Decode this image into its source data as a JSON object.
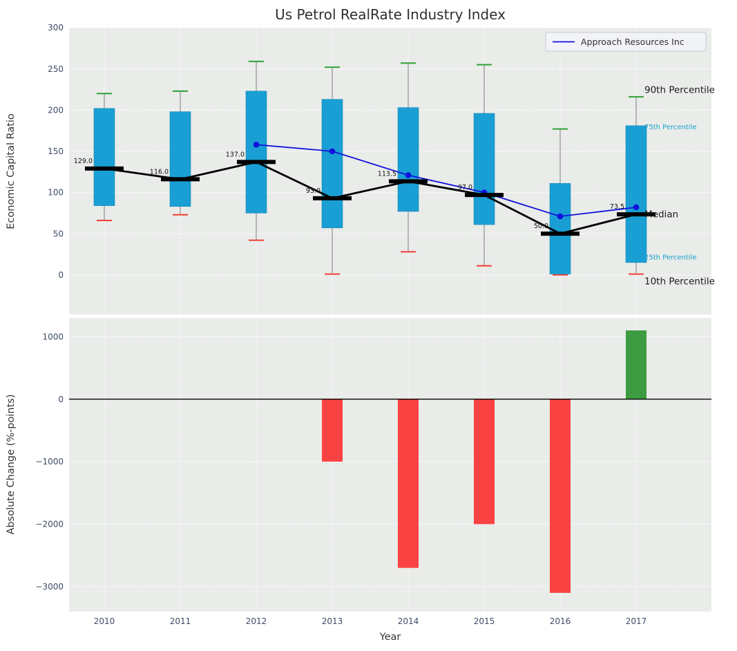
{
  "figure": {
    "title": "Us Petrol RealRate Industry Index",
    "xlabel": "Year",
    "legend_label": "Approach Resources Inc"
  },
  "colors": {
    "panel_bg": "#e9ece9",
    "grid": "#ffffff",
    "box_fill": "#1a9fd4",
    "box_edge": "#1587b5",
    "whisker": "#8f8f8f",
    "cap_high": "#2fa033",
    "cap_low": "#f03d33",
    "median": "#000000",
    "company_line": "#1212dd",
    "bar_negative": "#fb4243",
    "bar_positive": "#3d9c41",
    "zero_line": "#000000",
    "tick_label": "#3d4a66",
    "annotation_dark": "#1a1a1a",
    "annotation_cyan": "#18a0ce",
    "title_color": "#2f2f2f",
    "axis_label": "#333333",
    "legend_bg": "#f2f3f6",
    "legend_border": "#c8c8d0",
    "legend_text": "#333333"
  },
  "chart_data": [
    {
      "type": "boxplot",
      "title": "Us Petrol RealRate Industry Index",
      "ylabel": "Economic Capital Ratio",
      "ylim": [
        -48,
        300
      ],
      "yticks": [
        0,
        50,
        100,
        150,
        200,
        250,
        300
      ],
      "categories": [
        "2010",
        "2011",
        "2012",
        "2013",
        "2014",
        "2015",
        "2016",
        "2017"
      ],
      "boxes": [
        {
          "year": "2010",
          "p10": 66,
          "p25": 84,
          "median": 129.0,
          "p75": 202,
          "p90": 220,
          "median_label": "129.0"
        },
        {
          "year": "2011",
          "p10": 73,
          "p25": 83,
          "median": 116.0,
          "p75": 198,
          "p90": 223,
          "median_label": "116.0"
        },
        {
          "year": "2012",
          "p10": 42,
          "p25": 75,
          "median": 137.0,
          "p75": 223,
          "p90": 259,
          "median_label": "137.0"
        },
        {
          "year": "2013",
          "p10": 1,
          "p25": 57,
          "median": 93.0,
          "p75": 213,
          "p90": 252,
          "median_label": "93.0"
        },
        {
          "year": "2014",
          "p10": 28,
          "p25": 77,
          "median": 113.5,
          "p75": 203,
          "p90": 257,
          "median_label": "113.5"
        },
        {
          "year": "2015",
          "p10": 11,
          "p25": 61,
          "median": 97.0,
          "p75": 196,
          "p90": 255,
          "median_label": "97.0"
        },
        {
          "year": "2016",
          "p10": 0,
          "p25": 1,
          "median": 50.0,
          "p75": 111,
          "p90": 177,
          "median_label": "50.0"
        },
        {
          "year": "2017",
          "p10": 1,
          "p25": 15,
          "median": 73.5,
          "p75": 181,
          "p90": 216,
          "median_label": "73.5"
        }
      ],
      "company_series": {
        "name": "Approach Resources Inc",
        "years": [
          "2012",
          "2013",
          "2014",
          "2015",
          "2016",
          "2017"
        ],
        "values": [
          158,
          150,
          121,
          100,
          71,
          82
        ]
      },
      "right_annotations": [
        {
          "label": "90th Percentile",
          "at_value": 224,
          "style": "dark"
        },
        {
          "label": "75th Percentile",
          "at_value": 180,
          "style": "cyan"
        },
        {
          "label": "Median",
          "at_value": 73,
          "style": "dark"
        },
        {
          "label": "25th Percentile",
          "at_value": 22,
          "style": "cyan"
        },
        {
          "label": "10th Percentile",
          "at_value": -8,
          "style": "dark"
        }
      ],
      "legend": {
        "label": "Approach Resources Inc",
        "position": "upper right"
      }
    },
    {
      "type": "bar",
      "ylabel": "Absolute Change (%-points)",
      "xlabel": "Year",
      "ylim": [
        -3400,
        1300
      ],
      "yticks": [
        1000,
        0,
        -1000,
        -2000,
        -3000
      ],
      "ytick_labels": [
        "1000",
        "0",
        "−1000",
        "−2000",
        "−3000"
      ],
      "categories": [
        "2010",
        "2011",
        "2012",
        "2013",
        "2014",
        "2015",
        "2016",
        "2017"
      ],
      "values": [
        null,
        null,
        null,
        -1000,
        -2700,
        -2000,
        -3100,
        1100
      ]
    }
  ]
}
